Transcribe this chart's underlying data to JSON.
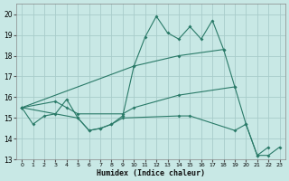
{
  "xlabel": "Humidex (Indice chaleur)",
  "xlim": [
    -0.5,
    23.5
  ],
  "ylim": [
    13,
    20.5
  ],
  "yticks": [
    13,
    14,
    15,
    16,
    17,
    18,
    19,
    20
  ],
  "xticks": [
    0,
    1,
    2,
    3,
    4,
    5,
    6,
    7,
    8,
    9,
    10,
    11,
    12,
    13,
    14,
    15,
    16,
    17,
    18,
    19,
    20,
    21,
    22,
    23
  ],
  "bg_color": "#c8e8e5",
  "grid_color": "#a8ccca",
  "line_color": "#2a7a68",
  "series": [
    {
      "x": [
        0,
        1,
        2,
        3,
        4,
        5,
        6,
        7,
        8,
        9,
        10,
        11,
        12,
        13,
        14,
        15,
        16,
        17,
        18,
        19,
        20,
        21,
        22
      ],
      "y": [
        15.5,
        14.7,
        15.1,
        15.2,
        15.9,
        15.0,
        14.4,
        14.5,
        14.7,
        15.1,
        17.5,
        18.9,
        19.9,
        19.1,
        18.8,
        19.4,
        18.8,
        19.7,
        18.3,
        16.5,
        14.7,
        13.2,
        13.6
      ]
    },
    {
      "x": [
        0,
        10,
        14,
        18
      ],
      "y": [
        15.5,
        17.5,
        18.0,
        18.3
      ]
    },
    {
      "x": [
        0,
        3,
        4,
        5,
        9,
        10,
        14,
        19
      ],
      "y": [
        15.5,
        15.8,
        15.5,
        15.2,
        15.2,
        15.5,
        16.1,
        16.5
      ]
    },
    {
      "x": [
        0,
        5,
        6,
        7,
        8,
        9,
        14,
        15,
        19,
        20,
        21,
        22,
        23
      ],
      "y": [
        15.5,
        15.0,
        14.4,
        14.5,
        14.7,
        15.0,
        15.1,
        15.1,
        14.4,
        14.7,
        13.2,
        13.2,
        13.6
      ]
    }
  ]
}
